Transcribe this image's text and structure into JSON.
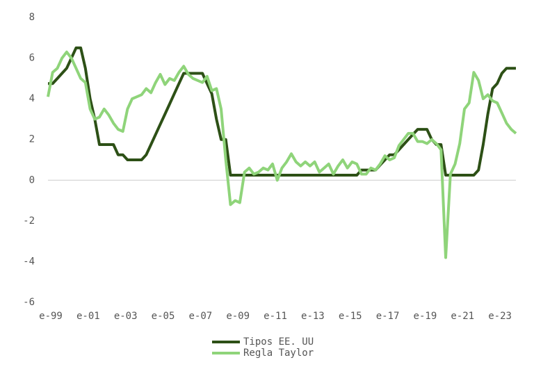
{
  "chart_data": {
    "type": "line",
    "categories": [
      "e-99",
      null,
      null,
      null,
      null,
      null,
      null,
      null,
      "e-01",
      null,
      null,
      null,
      null,
      null,
      null,
      null,
      "e-03",
      null,
      null,
      null,
      null,
      null,
      null,
      null,
      "e-05",
      null,
      null,
      null,
      null,
      null,
      null,
      null,
      "e-07",
      null,
      null,
      null,
      null,
      null,
      null,
      null,
      "e-09",
      null,
      null,
      null,
      null,
      null,
      null,
      null,
      "e-11",
      null,
      null,
      null,
      null,
      null,
      null,
      null,
      "e-13",
      null,
      null,
      null,
      null,
      null,
      null,
      null,
      "e-15",
      null,
      null,
      null,
      null,
      null,
      null,
      null,
      "e-17",
      null,
      null,
      null,
      null,
      null,
      null,
      null,
      "e-19",
      null,
      null,
      null,
      null,
      null,
      null,
      null,
      "e-21",
      null,
      null,
      null,
      null,
      null,
      null,
      null,
      "e-23",
      null,
      null,
      null,
      null
    ],
    "series": [
      {
        "name": "Tipos EE. UU",
        "color": "#2d5016",
        "values": [
          4.75,
          4.75,
          5.0,
          5.25,
          5.5,
          6.0,
          6.5,
          6.5,
          5.5,
          4.0,
          3.0,
          1.75,
          1.75,
          1.75,
          1.75,
          1.25,
          1.25,
          1.0,
          1.0,
          1.0,
          1.0,
          1.25,
          1.75,
          2.25,
          2.75,
          3.25,
          3.75,
          4.25,
          4.75,
          5.25,
          5.25,
          5.25,
          5.25,
          5.25,
          4.75,
          4.25,
          3.0,
          2.0,
          2.0,
          0.25,
          0.25,
          0.25,
          0.25,
          0.25,
          0.25,
          0.25,
          0.25,
          0.25,
          0.25,
          0.25,
          0.25,
          0.25,
          0.25,
          0.25,
          0.25,
          0.25,
          0.25,
          0.25,
          0.25,
          0.25,
          0.25,
          0.25,
          0.25,
          0.25,
          0.25,
          0.25,
          0.25,
          0.5,
          0.5,
          0.5,
          0.5,
          0.75,
          1.0,
          1.25,
          1.25,
          1.5,
          1.75,
          2.0,
          2.25,
          2.5,
          2.5,
          2.5,
          2.0,
          1.75,
          1.75,
          0.25,
          0.25,
          0.25,
          0.25,
          0.25,
          0.25,
          0.25,
          0.5,
          1.75,
          3.25,
          4.5,
          4.75,
          5.25,
          5.5,
          5.5,
          5.5
        ]
      },
      {
        "name": "Regla Taylor",
        "color": "#8fd47a",
        "values": [
          4.1,
          5.3,
          5.5,
          6.0,
          6.3,
          6.0,
          5.5,
          5.0,
          4.8,
          3.5,
          3.0,
          3.1,
          3.5,
          3.2,
          2.8,
          2.5,
          2.4,
          3.5,
          4.0,
          4.1,
          4.2,
          4.5,
          4.3,
          4.8,
          5.2,
          4.7,
          5.0,
          4.9,
          5.3,
          5.6,
          5.2,
          5.0,
          4.9,
          4.8,
          5.1,
          4.4,
          4.5,
          3.5,
          1.0,
          -1.2,
          -1.0,
          -1.1,
          0.4,
          0.6,
          0.3,
          0.4,
          0.6,
          0.5,
          0.8,
          0.0,
          0.6,
          0.9,
          1.3,
          0.9,
          0.7,
          0.9,
          0.7,
          0.9,
          0.4,
          0.6,
          0.8,
          0.3,
          0.7,
          1.0,
          0.6,
          0.9,
          0.8,
          0.3,
          0.3,
          0.6,
          0.5,
          0.8,
          1.2,
          1.0,
          1.1,
          1.7,
          2.0,
          2.3,
          2.3,
          1.9,
          1.9,
          1.8,
          2.0,
          1.8,
          1.5,
          -3.8,
          0.3,
          0.8,
          1.8,
          3.5,
          3.8,
          5.3,
          4.9,
          4.0,
          4.2,
          3.9,
          3.8,
          3.3,
          2.8,
          2.5,
          2.3
        ]
      }
    ],
    "ylim": [
      -6,
      8
    ],
    "yticks": [
      8,
      6,
      4,
      2,
      0,
      -2,
      -4,
      -6
    ],
    "grid": false
  }
}
